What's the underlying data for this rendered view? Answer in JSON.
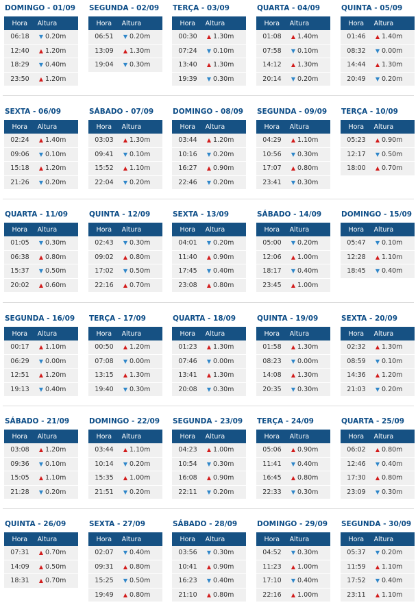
{
  "header": {
    "col_time": "Hora",
    "col_height": "Altura"
  },
  "weeks": [
    [
      {
        "title": "DOMINGO - 01/09",
        "tides": [
          {
            "time": "06:18",
            "dir": "down",
            "height": "0.20m"
          },
          {
            "time": "12:40",
            "dir": "up",
            "height": "1.20m"
          },
          {
            "time": "18:29",
            "dir": "down",
            "height": "0.40m"
          },
          {
            "time": "23:50",
            "dir": "up",
            "height": "1.20m"
          }
        ]
      },
      {
        "title": "SEGUNDA - 02/09",
        "tides": [
          {
            "time": "06:51",
            "dir": "down",
            "height": "0.20m"
          },
          {
            "time": "13:09",
            "dir": "up",
            "height": "1.30m"
          },
          {
            "time": "19:04",
            "dir": "down",
            "height": "0.30m"
          }
        ]
      },
      {
        "title": "TERÇA - 03/09",
        "tides": [
          {
            "time": "00:30",
            "dir": "up",
            "height": "1.30m"
          },
          {
            "time": "07:24",
            "dir": "down",
            "height": "0.10m"
          },
          {
            "time": "13:40",
            "dir": "up",
            "height": "1.30m"
          },
          {
            "time": "19:39",
            "dir": "down",
            "height": "0.30m"
          }
        ]
      },
      {
        "title": "QUARTA - 04/09",
        "tides": [
          {
            "time": "01:08",
            "dir": "up",
            "height": "1.40m"
          },
          {
            "time": "07:58",
            "dir": "down",
            "height": "0.10m"
          },
          {
            "time": "14:12",
            "dir": "up",
            "height": "1.30m"
          },
          {
            "time": "20:14",
            "dir": "down",
            "height": "0.20m"
          }
        ]
      },
      {
        "title": "QUINTA - 05/09",
        "tides": [
          {
            "time": "01:46",
            "dir": "up",
            "height": "1.40m"
          },
          {
            "time": "08:32",
            "dir": "down",
            "height": "0.00m"
          },
          {
            "time": "14:44",
            "dir": "up",
            "height": "1.30m"
          },
          {
            "time": "20:49",
            "dir": "down",
            "height": "0.20m"
          }
        ]
      }
    ],
    [
      {
        "title": "SEXTA - 06/09",
        "tides": [
          {
            "time": "02:24",
            "dir": "up",
            "height": "1.40m"
          },
          {
            "time": "09:06",
            "dir": "down",
            "height": "0.10m"
          },
          {
            "time": "15:18",
            "dir": "up",
            "height": "1.20m"
          },
          {
            "time": "21:26",
            "dir": "down",
            "height": "0.20m"
          }
        ]
      },
      {
        "title": "SÁBADO - 07/09",
        "tides": [
          {
            "time": "03:03",
            "dir": "up",
            "height": "1.30m"
          },
          {
            "time": "09:41",
            "dir": "down",
            "height": "0.10m"
          },
          {
            "time": "15:52",
            "dir": "up",
            "height": "1.10m"
          },
          {
            "time": "22:04",
            "dir": "down",
            "height": "0.20m"
          }
        ]
      },
      {
        "title": "DOMINGO - 08/09",
        "tides": [
          {
            "time": "03:44",
            "dir": "up",
            "height": "1.20m"
          },
          {
            "time": "10:16",
            "dir": "down",
            "height": "0.20m"
          },
          {
            "time": "16:27",
            "dir": "up",
            "height": "0.90m"
          },
          {
            "time": "22:46",
            "dir": "down",
            "height": "0.20m"
          }
        ]
      },
      {
        "title": "SEGUNDA - 09/09",
        "tides": [
          {
            "time": "04:29",
            "dir": "up",
            "height": "1.10m"
          },
          {
            "time": "10:56",
            "dir": "down",
            "height": "0.30m"
          },
          {
            "time": "17:07",
            "dir": "up",
            "height": "0.80m"
          },
          {
            "time": "23:41",
            "dir": "down",
            "height": "0.30m"
          }
        ]
      },
      {
        "title": "TERÇA - 10/09",
        "tides": [
          {
            "time": "05:23",
            "dir": "up",
            "height": "0.90m"
          },
          {
            "time": "12:17",
            "dir": "down",
            "height": "0.50m"
          },
          {
            "time": "18:00",
            "dir": "up",
            "height": "0.70m"
          }
        ]
      }
    ],
    [
      {
        "title": "QUARTA - 11/09",
        "tides": [
          {
            "time": "01:05",
            "dir": "down",
            "height": "0.30m"
          },
          {
            "time": "06:38",
            "dir": "up",
            "height": "0.80m"
          },
          {
            "time": "15:37",
            "dir": "down",
            "height": "0.50m"
          },
          {
            "time": "20:02",
            "dir": "up",
            "height": "0.60m"
          }
        ]
      },
      {
        "title": "QUINTA - 12/09",
        "tides": [
          {
            "time": "02:43",
            "dir": "down",
            "height": "0.30m"
          },
          {
            "time": "09:02",
            "dir": "up",
            "height": "0.80m"
          },
          {
            "time": "17:02",
            "dir": "down",
            "height": "0.50m"
          },
          {
            "time": "22:16",
            "dir": "up",
            "height": "0.70m"
          }
        ]
      },
      {
        "title": "SEXTA - 13/09",
        "tides": [
          {
            "time": "04:01",
            "dir": "down",
            "height": "0.20m"
          },
          {
            "time": "11:40",
            "dir": "up",
            "height": "0.90m"
          },
          {
            "time": "17:45",
            "dir": "down",
            "height": "0.40m"
          },
          {
            "time": "23:08",
            "dir": "up",
            "height": "0.80m"
          }
        ]
      },
      {
        "title": "SÁBADO - 14/09",
        "tides": [
          {
            "time": "05:00",
            "dir": "down",
            "height": "0.20m"
          },
          {
            "time": "12:06",
            "dir": "up",
            "height": "1.00m"
          },
          {
            "time": "18:17",
            "dir": "down",
            "height": "0.40m"
          },
          {
            "time": "23:45",
            "dir": "up",
            "height": "1.00m"
          }
        ]
      },
      {
        "title": "DOMINGO - 15/09",
        "tides": [
          {
            "time": "05:47",
            "dir": "down",
            "height": "0.10m"
          },
          {
            "time": "12:28",
            "dir": "up",
            "height": "1.10m"
          },
          {
            "time": "18:45",
            "dir": "down",
            "height": "0.40m"
          }
        ]
      }
    ],
    [
      {
        "title": "SEGUNDA - 16/09",
        "tides": [
          {
            "time": "00:17",
            "dir": "up",
            "height": "1.10m"
          },
          {
            "time": "06:29",
            "dir": "down",
            "height": "0.00m"
          },
          {
            "time": "12:51",
            "dir": "up",
            "height": "1.20m"
          },
          {
            "time": "19:13",
            "dir": "down",
            "height": "0.40m"
          }
        ]
      },
      {
        "title": "TERÇA - 17/09",
        "tides": [
          {
            "time": "00:50",
            "dir": "up",
            "height": "1.20m"
          },
          {
            "time": "07:08",
            "dir": "down",
            "height": "0.00m"
          },
          {
            "time": "13:15",
            "dir": "up",
            "height": "1.30m"
          },
          {
            "time": "19:40",
            "dir": "down",
            "height": "0.30m"
          }
        ]
      },
      {
        "title": "QUARTA - 18/09",
        "tides": [
          {
            "time": "01:23",
            "dir": "up",
            "height": "1.30m"
          },
          {
            "time": "07:46",
            "dir": "down",
            "height": "0.00m"
          },
          {
            "time": "13:41",
            "dir": "up",
            "height": "1.30m"
          },
          {
            "time": "20:08",
            "dir": "down",
            "height": "0.30m"
          }
        ]
      },
      {
        "title": "QUINTA - 19/09",
        "tides": [
          {
            "time": "01:58",
            "dir": "up",
            "height": "1.30m"
          },
          {
            "time": "08:23",
            "dir": "down",
            "height": "0.00m"
          },
          {
            "time": "14:08",
            "dir": "up",
            "height": "1.30m"
          },
          {
            "time": "20:35",
            "dir": "down",
            "height": "0.30m"
          }
        ]
      },
      {
        "title": "SEXTA - 20/09",
        "tides": [
          {
            "time": "02:32",
            "dir": "up",
            "height": "1.30m"
          },
          {
            "time": "08:59",
            "dir": "down",
            "height": "0.10m"
          },
          {
            "time": "14:36",
            "dir": "up",
            "height": "1.20m"
          },
          {
            "time": "21:03",
            "dir": "down",
            "height": "0.20m"
          }
        ]
      }
    ],
    [
      {
        "title": "SÁBADO - 21/09",
        "tides": [
          {
            "time": "03:08",
            "dir": "up",
            "height": "1.20m"
          },
          {
            "time": "09:36",
            "dir": "down",
            "height": "0.10m"
          },
          {
            "time": "15:05",
            "dir": "up",
            "height": "1.10m"
          },
          {
            "time": "21:28",
            "dir": "down",
            "height": "0.20m"
          }
        ]
      },
      {
        "title": "DOMINGO - 22/09",
        "tides": [
          {
            "time": "03:44",
            "dir": "up",
            "height": "1.10m"
          },
          {
            "time": "10:14",
            "dir": "down",
            "height": "0.20m"
          },
          {
            "time": "15:35",
            "dir": "up",
            "height": "1.00m"
          },
          {
            "time": "21:51",
            "dir": "down",
            "height": "0.20m"
          }
        ]
      },
      {
        "title": "SEGUNDA - 23/09",
        "tides": [
          {
            "time": "04:23",
            "dir": "up",
            "height": "1.00m"
          },
          {
            "time": "10:54",
            "dir": "down",
            "height": "0.30m"
          },
          {
            "time": "16:08",
            "dir": "up",
            "height": "0.90m"
          },
          {
            "time": "22:11",
            "dir": "down",
            "height": "0.20m"
          }
        ]
      },
      {
        "title": "TERÇA - 24/09",
        "tides": [
          {
            "time": "05:06",
            "dir": "up",
            "height": "0.90m"
          },
          {
            "time": "11:41",
            "dir": "down",
            "height": "0.40m"
          },
          {
            "time": "16:45",
            "dir": "up",
            "height": "0.80m"
          },
          {
            "time": "22:33",
            "dir": "down",
            "height": "0.30m"
          }
        ]
      },
      {
        "title": "QUARTA - 25/09",
        "tides": [
          {
            "time": "06:02",
            "dir": "up",
            "height": "0.80m"
          },
          {
            "time": "12:46",
            "dir": "down",
            "height": "0.40m"
          },
          {
            "time": "17:30",
            "dir": "up",
            "height": "0.80m"
          },
          {
            "time": "23:09",
            "dir": "down",
            "height": "0.30m"
          }
        ]
      }
    ],
    [
      {
        "title": "QUINTA - 26/09",
        "tides": [
          {
            "time": "07:31",
            "dir": "up",
            "height": "0.70m"
          },
          {
            "time": "14:09",
            "dir": "up",
            "height": "0.50m"
          },
          {
            "time": "18:31",
            "dir": "up",
            "height": "0.70m"
          }
        ]
      },
      {
        "title": "SEXTA - 27/09",
        "tides": [
          {
            "time": "02:07",
            "dir": "down",
            "height": "0.40m"
          },
          {
            "time": "09:31",
            "dir": "up",
            "height": "0.80m"
          },
          {
            "time": "15:25",
            "dir": "down",
            "height": "0.50m"
          },
          {
            "time": "19:49",
            "dir": "up",
            "height": "0.80m"
          }
        ]
      },
      {
        "title": "SÁBADO - 28/09",
        "tides": [
          {
            "time": "03:56",
            "dir": "down",
            "height": "0.30m"
          },
          {
            "time": "10:41",
            "dir": "up",
            "height": "0.90m"
          },
          {
            "time": "16:23",
            "dir": "down",
            "height": "0.40m"
          },
          {
            "time": "21:10",
            "dir": "up",
            "height": "0.80m"
          }
        ]
      },
      {
        "title": "DOMINGO - 29/09",
        "tides": [
          {
            "time": "04:52",
            "dir": "down",
            "height": "0.30m"
          },
          {
            "time": "11:23",
            "dir": "up",
            "height": "1.00m"
          },
          {
            "time": "17:10",
            "dir": "down",
            "height": "0.40m"
          },
          {
            "time": "22:16",
            "dir": "up",
            "height": "1.00m"
          }
        ]
      },
      {
        "title": "SEGUNDA - 30/09",
        "tides": [
          {
            "time": "05:37",
            "dir": "down",
            "height": "0.20m"
          },
          {
            "time": "11:59",
            "dir": "up",
            "height": "1.10m"
          },
          {
            "time": "17:52",
            "dir": "down",
            "height": "0.40m"
          },
          {
            "time": "23:11",
            "dir": "up",
            "height": "1.10m"
          }
        ]
      }
    ]
  ]
}
